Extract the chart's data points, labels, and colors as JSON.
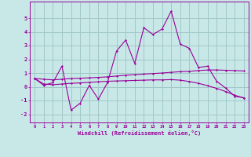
{
  "xlabel": "Windchill (Refroidissement éolien,°C)",
  "bg_color": "#c8e8e8",
  "grid_color": "#a0c8c8",
  "line_color": "#990099",
  "xlim": [
    -0.5,
    23.5
  ],
  "ylim": [
    -2.6,
    6.2
  ],
  "yticks": [
    -2,
    -1,
    0,
    1,
    2,
    3,
    4,
    5
  ],
  "xticks": [
    0,
    1,
    2,
    3,
    4,
    5,
    6,
    7,
    8,
    9,
    10,
    11,
    12,
    13,
    14,
    15,
    16,
    17,
    18,
    19,
    20,
    21,
    22,
    23
  ],
  "series1_x": [
    0,
    1,
    2,
    3,
    4,
    5,
    6,
    7,
    8,
    9,
    10,
    11,
    12,
    13,
    14,
    15,
    16,
    17,
    18,
    19,
    20,
    21,
    22,
    23
  ],
  "series1_y": [
    0.6,
    0.1,
    0.3,
    1.5,
    -1.7,
    -1.2,
    0.1,
    -0.9,
    0.3,
    2.6,
    3.4,
    1.7,
    4.3,
    3.8,
    4.2,
    5.5,
    3.1,
    2.8,
    1.4,
    1.5,
    0.4,
    -0.1,
    -0.7,
    -0.8
  ],
  "series2_x": [
    0,
    1,
    2,
    3,
    4,
    5,
    6,
    7,
    8,
    9,
    10,
    11,
    12,
    13,
    14,
    15,
    16,
    17,
    18,
    19,
    20,
    21,
    22,
    23
  ],
  "series2_y": [
    0.6,
    0.55,
    0.5,
    0.55,
    0.6,
    0.62,
    0.65,
    0.68,
    0.72,
    0.78,
    0.84,
    0.88,
    0.92,
    0.96,
    1.0,
    1.05,
    1.1,
    1.12,
    1.18,
    1.22,
    1.22,
    1.2,
    1.18,
    1.15
  ],
  "series3_x": [
    0,
    1,
    2,
    3,
    4,
    5,
    6,
    7,
    8,
    9,
    10,
    11,
    12,
    13,
    14,
    15,
    16,
    17,
    18,
    19,
    20,
    21,
    22,
    23
  ],
  "series3_y": [
    0.6,
    0.2,
    0.15,
    0.2,
    0.25,
    0.28,
    0.32,
    0.36,
    0.4,
    0.42,
    0.44,
    0.46,
    0.48,
    0.5,
    0.5,
    0.52,
    0.48,
    0.38,
    0.25,
    0.08,
    -0.12,
    -0.35,
    -0.62,
    -0.82
  ]
}
